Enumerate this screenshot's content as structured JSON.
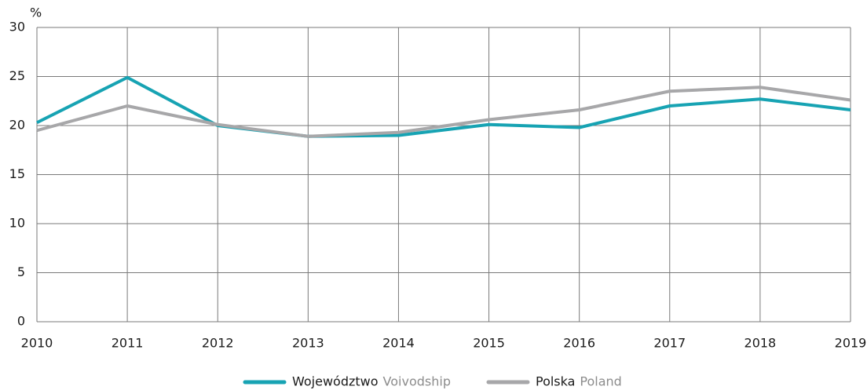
{
  "chart_data": {
    "type": "line",
    "y_unit": "%",
    "x": [
      2010,
      2011,
      2012,
      2013,
      2014,
      2015,
      2016,
      2017,
      2018,
      2019
    ],
    "xlim": [
      2010,
      2019
    ],
    "xticks": [
      2010,
      2011,
      2012,
      2013,
      2014,
      2015,
      2016,
      2017,
      2018,
      2019
    ],
    "ylim": [
      0,
      30
    ],
    "yticks": [
      0,
      5,
      10,
      15,
      20,
      25,
      30
    ],
    "grid": true,
    "legend": "bottom",
    "series": [
      {
        "name": "Województwo",
        "name_en": "Voivodship",
        "color": "#17a3b3",
        "values": [
          20.3,
          24.9,
          20.0,
          18.9,
          19.0,
          20.1,
          19.8,
          22.0,
          22.7,
          21.6
        ]
      },
      {
        "name": "Polska",
        "name_en": "Poland",
        "color": "#a7a7a9",
        "values": [
          19.5,
          22.0,
          20.1,
          18.9,
          19.3,
          20.6,
          21.6,
          23.5,
          23.9,
          22.6
        ]
      }
    ]
  }
}
